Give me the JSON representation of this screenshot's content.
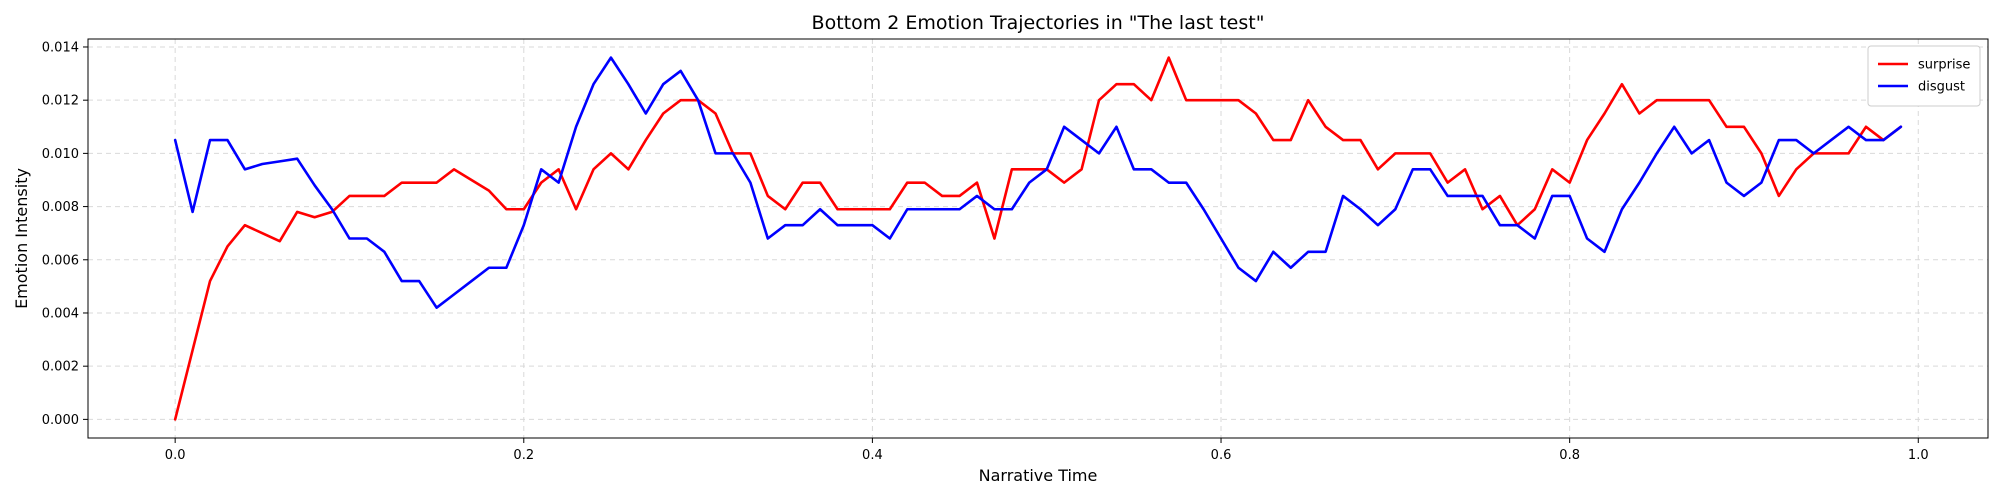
{
  "chart_data": {
    "type": "line",
    "title": "Bottom 2 Emotion Trajectories in \"The last test\"",
    "xlabel": "Narrative Time",
    "ylabel": "Emotion Intensity",
    "xlim": [
      -0.05,
      1.04
    ],
    "ylim": [
      -0.0007,
      0.0143
    ],
    "xticks": [
      0.0,
      0.2,
      0.4,
      0.6,
      0.8,
      1.0
    ],
    "xtick_labels": [
      "0.0",
      "0.2",
      "0.4",
      "0.6",
      "0.8",
      "1.0"
    ],
    "yticks": [
      0.0,
      0.002,
      0.004,
      0.006,
      0.008,
      0.01,
      0.012,
      0.014
    ],
    "ytick_labels": [
      "0.000",
      "0.002",
      "0.004",
      "0.006",
      "0.008",
      "0.010",
      "0.012",
      "0.014"
    ],
    "grid": true,
    "legend_position": "top-right",
    "x": [
      0.0,
      0.01,
      0.02,
      0.03,
      0.04,
      0.05,
      0.06,
      0.07,
      0.08,
      0.09,
      0.1,
      0.11,
      0.12,
      0.13,
      0.14,
      0.15,
      0.16,
      0.17,
      0.18,
      0.19,
      0.2,
      0.21,
      0.22,
      0.23,
      0.24,
      0.25,
      0.26,
      0.27,
      0.28,
      0.29,
      0.3,
      0.31,
      0.32,
      0.33,
      0.34,
      0.35,
      0.36,
      0.37,
      0.38,
      0.39,
      0.4,
      0.41,
      0.42,
      0.43,
      0.44,
      0.45,
      0.46,
      0.47,
      0.48,
      0.49,
      0.5,
      0.51,
      0.52,
      0.53,
      0.54,
      0.55,
      0.56,
      0.57,
      0.58,
      0.59,
      0.6,
      0.61,
      0.62,
      0.63,
      0.64,
      0.65,
      0.66,
      0.67,
      0.68,
      0.69,
      0.7,
      0.71,
      0.72,
      0.73,
      0.74,
      0.75,
      0.76,
      0.77,
      0.78,
      0.79,
      0.8,
      0.81,
      0.82,
      0.83,
      0.84,
      0.85,
      0.86,
      0.87,
      0.88,
      0.89,
      0.9,
      0.91,
      0.92,
      0.93,
      0.94,
      0.95,
      0.96,
      0.97,
      0.98,
      0.99
    ],
    "series": [
      {
        "name": "surprise",
        "color": "#ff0000",
        "values": [
          0.0,
          0.0026,
          0.0052,
          0.0065,
          0.0073,
          0.007,
          0.0067,
          0.0078,
          0.0076,
          0.0078,
          0.0084,
          0.0084,
          0.0084,
          0.0089,
          0.0089,
          0.0089,
          0.0094,
          0.009,
          0.0086,
          0.0079,
          0.0079,
          0.0089,
          0.0094,
          0.0079,
          0.0094,
          0.01,
          0.0094,
          0.0105,
          0.0115,
          0.012,
          0.012,
          0.0115,
          0.01,
          0.01,
          0.0084,
          0.0079,
          0.0089,
          0.0089,
          0.0079,
          0.0079,
          0.0079,
          0.0079,
          0.0089,
          0.0089,
          0.0084,
          0.0084,
          0.0089,
          0.0068,
          0.0094,
          0.0094,
          0.0094,
          0.0089,
          0.0094,
          0.012,
          0.0126,
          0.0126,
          0.012,
          0.0136,
          0.012,
          0.012,
          0.012,
          0.012,
          0.0115,
          0.0105,
          0.0105,
          0.012,
          0.011,
          0.0105,
          0.0105,
          0.0094,
          0.01,
          0.01,
          0.01,
          0.0089,
          0.0094,
          0.0079,
          0.0084,
          0.0073,
          0.0079,
          0.0094,
          0.0089,
          0.0105,
          0.0115,
          0.0126,
          0.0115,
          0.012,
          0.012,
          0.012,
          0.012,
          0.011,
          0.011,
          0.01,
          0.0084,
          0.0094,
          0.01,
          0.01,
          0.01,
          0.011,
          0.0105,
          0.011
        ]
      },
      {
        "name": "disgust",
        "color": "#0000ff",
        "values": [
          0.0105,
          0.0078,
          0.0105,
          0.0105,
          0.0094,
          0.0096,
          0.0097,
          0.0098,
          0.0088,
          0.0079,
          0.0068,
          0.0068,
          0.0063,
          0.0052,
          0.0052,
          0.0042,
          0.0047,
          0.0052,
          0.0057,
          0.0057,
          0.0073,
          0.0094,
          0.0089,
          0.011,
          0.0126,
          0.0136,
          0.0126,
          0.0115,
          0.0126,
          0.0131,
          0.012,
          0.01,
          0.01,
          0.0089,
          0.0068,
          0.0073,
          0.0073,
          0.0079,
          0.0073,
          0.0073,
          0.0073,
          0.0068,
          0.0079,
          0.0079,
          0.0079,
          0.0079,
          0.0084,
          0.0079,
          0.0079,
          0.0089,
          0.0094,
          0.011,
          0.0105,
          0.01,
          0.011,
          0.0094,
          0.0094,
          0.0089,
          0.0089,
          0.0079,
          0.0068,
          0.0057,
          0.0052,
          0.0063,
          0.0057,
          0.0063,
          0.0063,
          0.0084,
          0.0079,
          0.0073,
          0.0079,
          0.0094,
          0.0094,
          0.0084,
          0.0084,
          0.0084,
          0.0073,
          0.0073,
          0.0068,
          0.0084,
          0.0084,
          0.0068,
          0.0063,
          0.0079,
          0.0089,
          0.01,
          0.011,
          0.01,
          0.0105,
          0.0089,
          0.0084,
          0.0089,
          0.0105,
          0.0105,
          0.01,
          0.0105,
          0.011,
          0.0105,
          0.0105,
          0.011
        ]
      }
    ]
  }
}
